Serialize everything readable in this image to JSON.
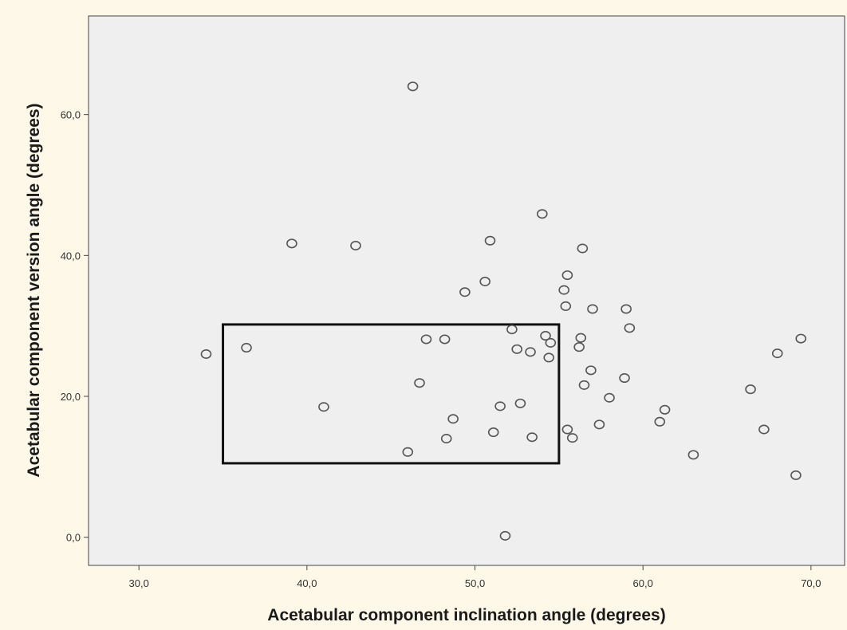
{
  "chart_data": {
    "type": "scatter",
    "title": "",
    "xlabel": "Acetabular component inclination angle (degrees)",
    "ylabel": "Acetabular component version angle (degrees)",
    "xlim": [
      27,
      72
    ],
    "ylim": [
      -4,
      74
    ],
    "xticks": [
      30,
      40,
      50,
      60,
      70
    ],
    "yticks": [
      0,
      20,
      40,
      60
    ],
    "xtick_labels": [
      "30,0",
      "40,0",
      "50,0",
      "60,0",
      "70,0"
    ],
    "ytick_labels": [
      "0,0",
      "20,0",
      "40,0",
      "60,0"
    ],
    "grid": false,
    "marker": "open-circle",
    "colors": {
      "page_background": "#fdf8e8",
      "plot_background": "#efefef",
      "marker": "#555555",
      "box": "#111111"
    },
    "safe_zone_box": {
      "x": [
        35,
        55
      ],
      "y": [
        10.5,
        30.2
      ]
    },
    "points": [
      {
        "x": 34.0,
        "y": 26.0
      },
      {
        "x": 36.4,
        "y": 26.9
      },
      {
        "x": 39.1,
        "y": 41.7
      },
      {
        "x": 41.0,
        "y": 18.5
      },
      {
        "x": 42.9,
        "y": 41.4
      },
      {
        "x": 46.0,
        "y": 12.1
      },
      {
        "x": 46.3,
        "y": 64.0
      },
      {
        "x": 46.7,
        "y": 21.9
      },
      {
        "x": 47.1,
        "y": 28.1
      },
      {
        "x": 48.2,
        "y": 28.1
      },
      {
        "x": 48.3,
        "y": 14.0
      },
      {
        "x": 48.7,
        "y": 16.8
      },
      {
        "x": 49.4,
        "y": 34.8
      },
      {
        "x": 50.6,
        "y": 36.3
      },
      {
        "x": 50.9,
        "y": 42.1
      },
      {
        "x": 51.1,
        "y": 14.9
      },
      {
        "x": 51.5,
        "y": 18.6
      },
      {
        "x": 51.8,
        "y": 0.2
      },
      {
        "x": 52.2,
        "y": 29.5
      },
      {
        "x": 52.5,
        "y": 26.7
      },
      {
        "x": 52.7,
        "y": 19.0
      },
      {
        "x": 53.3,
        "y": 26.3
      },
      {
        "x": 53.4,
        "y": 14.2
      },
      {
        "x": 54.0,
        "y": 45.9
      },
      {
        "x": 54.2,
        "y": 28.6
      },
      {
        "x": 54.4,
        "y": 25.5
      },
      {
        "x": 54.5,
        "y": 27.6
      },
      {
        "x": 55.3,
        "y": 35.1
      },
      {
        "x": 55.4,
        "y": 32.8
      },
      {
        "x": 55.5,
        "y": 37.2
      },
      {
        "x": 55.5,
        "y": 15.3
      },
      {
        "x": 55.8,
        "y": 14.1
      },
      {
        "x": 56.2,
        "y": 27.0
      },
      {
        "x": 56.3,
        "y": 28.3
      },
      {
        "x": 56.4,
        "y": 41.0
      },
      {
        "x": 56.5,
        "y": 21.6
      },
      {
        "x": 56.9,
        "y": 23.7
      },
      {
        "x": 57.0,
        "y": 32.4
      },
      {
        "x": 57.4,
        "y": 16.0
      },
      {
        "x": 58.0,
        "y": 19.8
      },
      {
        "x": 58.9,
        "y": 22.6
      },
      {
        "x": 59.0,
        "y": 32.4
      },
      {
        "x": 59.2,
        "y": 29.7
      },
      {
        "x": 61.0,
        "y": 16.4
      },
      {
        "x": 61.3,
        "y": 18.1
      },
      {
        "x": 63.0,
        "y": 11.7
      },
      {
        "x": 66.4,
        "y": 21.0
      },
      {
        "x": 67.2,
        "y": 15.3
      },
      {
        "x": 68.0,
        "y": 26.1
      },
      {
        "x": 69.1,
        "y": 8.8
      },
      {
        "x": 69.4,
        "y": 28.2
      }
    ]
  }
}
